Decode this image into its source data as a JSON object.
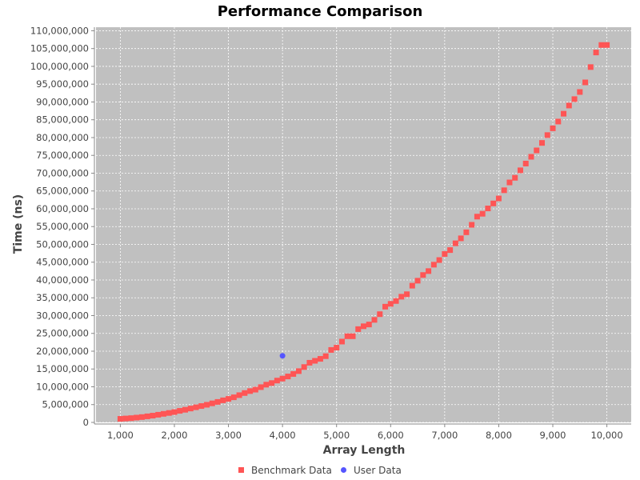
{
  "chart_data": {
    "type": "scatter",
    "title": "Performance Comparison",
    "xlabel": "Array Length",
    "ylabel": "Time (ns)",
    "xlim": [
      550,
      10450
    ],
    "ylim": [
      0,
      111000000
    ],
    "x_ticks": [
      1000,
      2000,
      3000,
      4000,
      5000,
      6000,
      7000,
      8000,
      9000,
      10000
    ],
    "x_tick_labels": [
      "1,000",
      "2,000",
      "3,000",
      "4,000",
      "5,000",
      "6,000",
      "7,000",
      "8,000",
      "9,000",
      "10,000"
    ],
    "y_ticks": [
      0,
      5000000,
      10000000,
      15000000,
      20000000,
      25000000,
      30000000,
      35000000,
      40000000,
      45000000,
      50000000,
      55000000,
      60000000,
      65000000,
      70000000,
      75000000,
      80000000,
      85000000,
      90000000,
      95000000,
      100000000,
      105000000,
      110000000
    ],
    "y_tick_labels": [
      "0",
      "5,000,000",
      "10,000,000",
      "15,000,000",
      "20,000,000",
      "25,000,000",
      "30,000,000",
      "35,000,000",
      "40,000,000",
      "45,000,000",
      "50,000,000",
      "55,000,000",
      "60,000,000",
      "65,000,000",
      "70,000,000",
      "75,000,000",
      "80,000,000",
      "85,000,000",
      "90,000,000",
      "95,000,000",
      "100,000,000",
      "105,000,000",
      "110,000,000"
    ],
    "grid": true,
    "legend_position": "bottom",
    "plot_background": "#c0c0c0",
    "series": [
      {
        "name": "Benchmark Data",
        "color": "#ff5555",
        "marker": "square",
        "x": [
          1000,
          1100,
          1200,
          1300,
          1400,
          1500,
          1600,
          1700,
          1800,
          1900,
          2000,
          2100,
          2200,
          2300,
          2400,
          2500,
          2600,
          2700,
          2800,
          2900,
          3000,
          3100,
          3200,
          3300,
          3400,
          3500,
          3600,
          3700,
          3800,
          3900,
          4000,
          4100,
          4200,
          4300,
          4400,
          4500,
          4600,
          4700,
          4800,
          4900,
          5000,
          5100,
          5200,
          5300,
          5400,
          5500,
          5600,
          5700,
          5800,
          5900,
          6000,
          6100,
          6200,
          6300,
          6400,
          6500,
          6600,
          6700,
          6800,
          6900,
          7000,
          7100,
          7200,
          7300,
          7400,
          7500,
          7600,
          7700,
          7800,
          7900,
          8000,
          8100,
          8200,
          8300,
          8400,
          8500,
          8600,
          8700,
          8800,
          8900,
          9000,
          9100,
          9200,
          9300,
          9400,
          9500,
          9600,
          9700,
          9800,
          9900,
          10000
        ],
        "y": [
          1000000,
          1100000,
          1200000,
          1350000,
          1500000,
          1700000,
          1900000,
          2150000,
          2400000,
          2650000,
          2900000,
          3250000,
          3550000,
          3900000,
          4250000,
          4600000,
          4950000,
          5350000,
          5750000,
          6200000,
          6600000,
          7050000,
          7650000,
          8250000,
          8800000,
          9200000,
          9900000,
          10600000,
          11050000,
          11750000,
          12300000,
          12900000,
          13600000,
          14400000,
          15550000,
          16750000,
          17300000,
          17850000,
          18600000,
          20350000,
          21000000,
          22700000,
          24200000,
          24200000,
          26200000,
          27000000,
          27500000,
          28800000,
          30400000,
          32500000,
          33300000,
          34100000,
          35300000,
          36000000,
          38400000,
          39800000,
          41400000,
          42500000,
          44300000,
          45600000,
          47300000,
          48400000,
          50300000,
          51700000,
          53400000,
          55500000,
          57800000,
          58600000,
          60100000,
          61500000,
          62900000,
          65200000,
          67400000,
          68700000,
          70800000,
          72700000,
          74600000,
          76400000,
          78500000,
          80700000,
          82600000,
          84500000,
          86700000,
          89000000,
          90800000,
          92800000,
          95500000,
          99800000,
          103900000,
          106000000,
          106000000
        ]
      },
      {
        "name": "User Data",
        "color": "#5555ff",
        "marker": "circle",
        "x": [
          4000
        ],
        "y": [
          18700000
        ]
      }
    ]
  }
}
